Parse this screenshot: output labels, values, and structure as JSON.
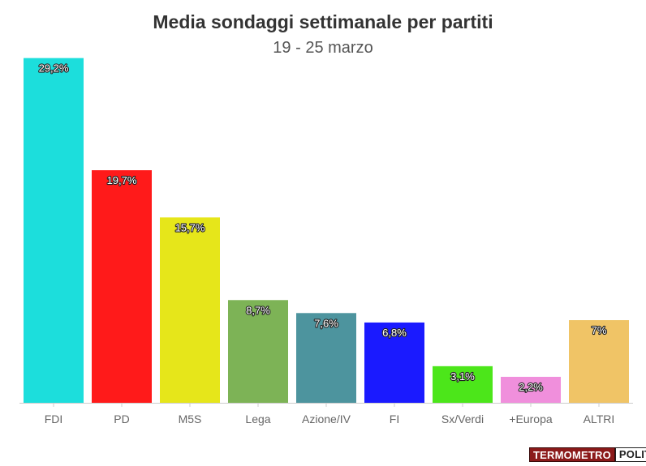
{
  "chart_data": {
    "type": "bar",
    "title": "Media sondaggi settimanale per partiti",
    "subtitle": "19 - 25 marzo",
    "categories": [
      "FDI",
      "PD",
      "M5S",
      "Lega",
      "Azione/IV",
      "FI",
      "Sx/Verdi",
      "+Europa",
      "ALTRI"
    ],
    "values": [
      29.2,
      19.7,
      15.7,
      8.7,
      7.6,
      6.8,
      3.1,
      2.2,
      7.0
    ],
    "labels": [
      "29,2%",
      "19,7%",
      "15,7%",
      "8,7%",
      "7,6%",
      "6,8%",
      "3,1%",
      "2,2%",
      "7%"
    ],
    "colors": [
      "#1cdedc",
      "#ff1a1a",
      "#e6e61a",
      "#7db356",
      "#4d949e",
      "#1a1aff",
      "#4ce61a",
      "#f08fdc",
      "#f0c466"
    ],
    "ylim": [
      0,
      30
    ],
    "grid": false,
    "xlabel": "",
    "ylabel": ""
  },
  "branding": {
    "logo_part_a": "TERMOMETRO",
    "logo_part_b": "POLITICO"
  }
}
